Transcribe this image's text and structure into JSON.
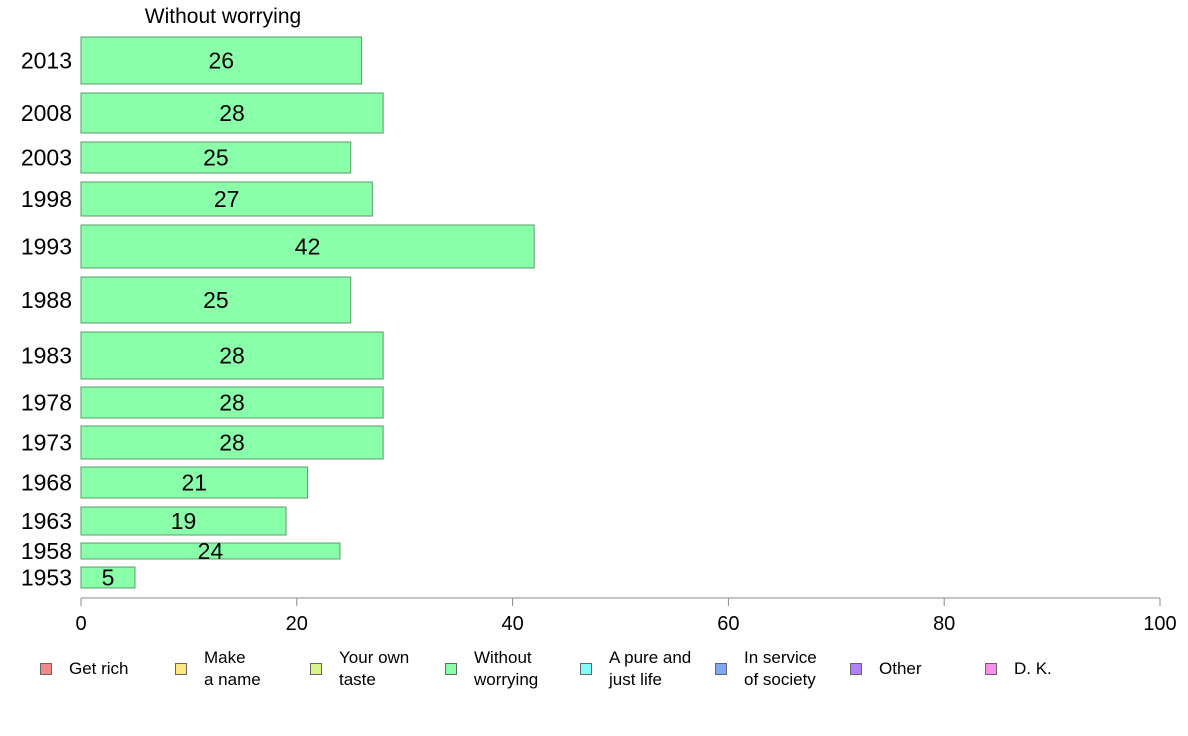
{
  "chart_data": {
    "type": "bar",
    "orientation": "horizontal",
    "title": "Without worrying",
    "categories": [
      "2013",
      "2008",
      "2003",
      "1998",
      "1993",
      "1988",
      "1983",
      "1978",
      "1973",
      "1968",
      "1963",
      "1958",
      "1953"
    ],
    "series": [
      {
        "name": "Without worrying",
        "values": [
          26,
          28,
          25,
          27,
          42,
          25,
          28,
          28,
          28,
          21,
          19,
          24,
          5
        ]
      }
    ],
    "data_labels": [
      "26",
      "28",
      "25",
      "27",
      "42",
      "25",
      "28",
      "28",
      "28",
      "21",
      "19",
      "24",
      "5"
    ],
    "xlim": [
      0,
      100
    ],
    "xticks": [
      "0",
      "20",
      "40",
      "60",
      "80",
      "100"
    ],
    "grid": false,
    "legend_position": "bottom",
    "legend": [
      {
        "label": "Get rich",
        "color": "#f08a8a"
      },
      {
        "label": "Make\na name",
        "color": "#ffe680"
      },
      {
        "label": "Your own\ntaste",
        "color": "#d8f58a"
      },
      {
        "label": "Without\nworrying",
        "color": "#8affaa"
      },
      {
        "label": "A pure and\njust life",
        "color": "#80ffff"
      },
      {
        "label": "In service\nof society",
        "color": "#80a8f0"
      },
      {
        "label": "Other",
        "color": "#b080f8"
      },
      {
        "label": "D. K.",
        "color": "#f890e8"
      }
    ],
    "bar_color": "#8affaa"
  }
}
